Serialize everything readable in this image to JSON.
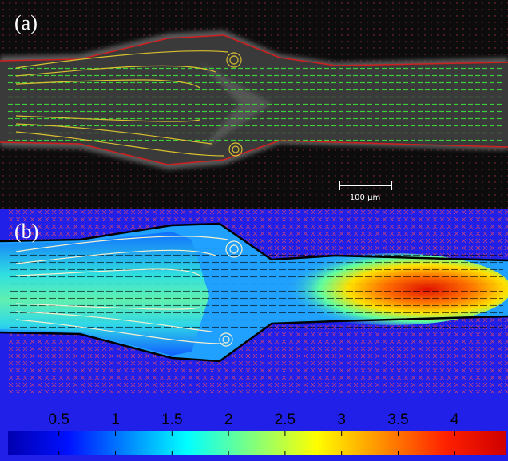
{
  "panel_a": {
    "label": "(a)",
    "scale_bar": "100 μm"
  },
  "panel_b": {
    "label": "(b)",
    "colorbar": {
      "lim": [
        0.05,
        4.45
      ],
      "ticks": [
        0.5,
        1,
        1.5,
        2,
        2.5,
        3,
        3.5,
        4
      ]
    }
  }
}
